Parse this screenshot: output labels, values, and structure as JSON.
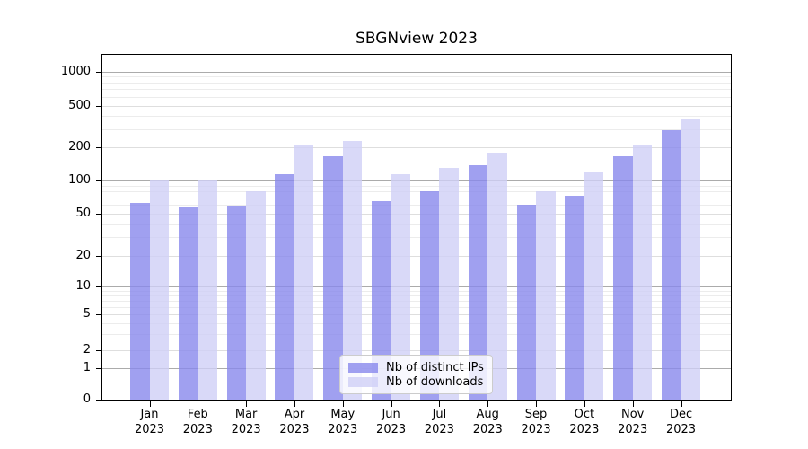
{
  "title": "SBGNview 2023",
  "chart_data": {
    "type": "bar",
    "title": "SBGNview 2023",
    "scale": "log-like (symlog), labeled ticks 0,1,2,5,10,20,50,100,200,500,1000",
    "categories": [
      "Jan",
      "Feb",
      "Mar",
      "Apr",
      "May",
      "Jun",
      "Jul",
      "Aug",
      "Sep",
      "Oct",
      "Nov",
      "Dec"
    ],
    "year_label": "2023",
    "series": [
      {
        "name": "Nb of distinct IPs",
        "color": "#8888ec",
        "values": [
          62,
          57,
          59,
          115,
          168,
          65,
          80,
          139,
          60,
          73,
          166,
          293
        ]
      },
      {
        "name": "Nb of downloads",
        "color": "#cfcff6",
        "values": [
          100,
          100,
          80,
          215,
          230,
          115,
          131,
          180,
          80,
          119,
          210,
          371
        ]
      }
    ],
    "yticks": [
      0,
      1,
      2,
      5,
      10,
      20,
      50,
      100,
      200,
      500,
      1000
    ],
    "xlabel": "",
    "ylabel": "",
    "ylim": [
      0,
      1300
    ],
    "grid": true,
    "legend_position": "lower center inside plot"
  }
}
